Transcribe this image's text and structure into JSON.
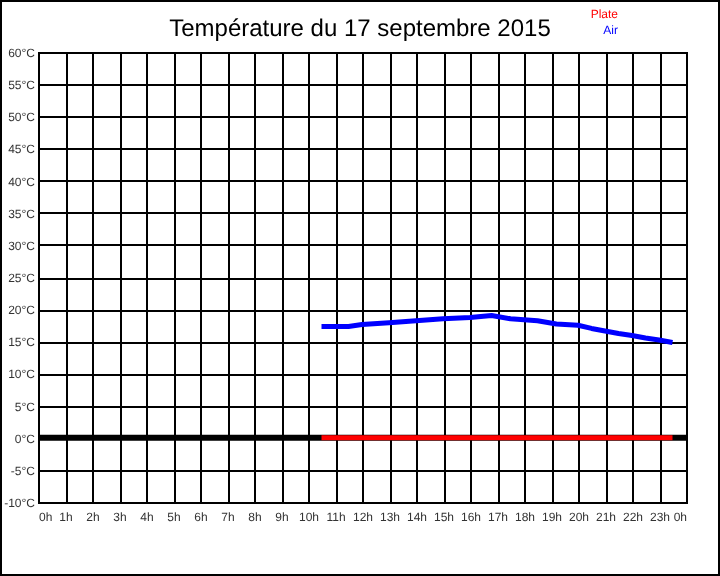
{
  "chart_data": {
    "type": "line",
    "title": "Température du 17 septembre 2015",
    "xlim": [
      "2015-09-17T00:00",
      "2015-09-18T00:00"
    ],
    "ylim": [
      -10,
      60
    ],
    "xticks": [
      {
        "value": "2015-09-17T00:00",
        "label": "0h"
      },
      {
        "value": "2015-09-17T01:00",
        "label": "1h"
      },
      {
        "value": "2015-09-17T02:00",
        "label": "2h"
      },
      {
        "value": "2015-09-17T03:00",
        "label": "3h"
      },
      {
        "value": "2015-09-17T04:00",
        "label": "4h"
      },
      {
        "value": "2015-09-17T05:00",
        "label": "5h"
      },
      {
        "value": "2015-09-17T06:00",
        "label": "6h"
      },
      {
        "value": "2015-09-17T07:00",
        "label": "7h"
      },
      {
        "value": "2015-09-17T08:00",
        "label": "8h"
      },
      {
        "value": "2015-09-17T09:00",
        "label": "9h"
      },
      {
        "value": "2015-09-17T10:00",
        "label": "10h"
      },
      {
        "value": "2015-09-17T11:00",
        "label": "11h"
      },
      {
        "value": "2015-09-17T12:00",
        "label": "12h"
      },
      {
        "value": "2015-09-17T13:00",
        "label": "13h"
      },
      {
        "value": "2015-09-17T14:00",
        "label": "14h"
      },
      {
        "value": "2015-09-17T15:00",
        "label": "15h"
      },
      {
        "value": "2015-09-17T16:00",
        "label": "16h"
      },
      {
        "value": "2015-09-17T17:00",
        "label": "17h"
      },
      {
        "value": "2015-09-17T18:00",
        "label": "18h"
      },
      {
        "value": "2015-09-17T19:00",
        "label": "19h"
      },
      {
        "value": "2015-09-17T20:00",
        "label": "20h"
      },
      {
        "value": "2015-09-17T21:00",
        "label": "21h"
      },
      {
        "value": "2015-09-17T22:00",
        "label": "22h"
      },
      {
        "value": "2015-09-17T23:00",
        "label": "23h"
      },
      {
        "value": "2015-09-18T00:00",
        "label": "0h"
      }
    ],
    "yticks": [
      {
        "value": -10,
        "label": "-10°C"
      },
      {
        "value": -5,
        "label": "-5°C"
      },
      {
        "value": 0,
        "label": "0°C"
      },
      {
        "value": 5,
        "label": "5°C"
      },
      {
        "value": 10,
        "label": "10°C"
      },
      {
        "value": 15,
        "label": "15°C"
      },
      {
        "value": 20,
        "label": "20°C"
      },
      {
        "value": 25,
        "label": "25°C"
      },
      {
        "value": 30,
        "label": "30°C"
      },
      {
        "value": 35,
        "label": "35°C"
      },
      {
        "value": 40,
        "label": "40°C"
      },
      {
        "value": 45,
        "label": "45°C"
      },
      {
        "value": 50,
        "label": "50°C"
      },
      {
        "value": 55,
        "label": "55°C"
      },
      {
        "value": 60,
        "label": "60°C"
      }
    ],
    "grid": true,
    "legend": "top right",
    "line_style": "solid",
    "marker": "none",
    "ref_lines": [
      {
        "axis": "y",
        "value": 0,
        "color": "#000000"
      }
    ],
    "series": [
      {
        "name": "Plate",
        "color": "#ff0000",
        "x": [
          "2015-09-17T10:30",
          "2015-09-17T23:30"
        ],
        "values": [
          0,
          0
        ]
      },
      {
        "name": "Air",
        "color": "#0000ff",
        "x": [
          "2015-09-17T10:30",
          "2015-09-17T11:30",
          "2015-09-17T12:00",
          "2015-09-17T13:00",
          "2015-09-17T14:00",
          "2015-09-17T15:00",
          "2015-09-17T16:00",
          "2015-09-17T16:48",
          "2015-09-17T17:30",
          "2015-09-17T18:30",
          "2015-09-17T19:12",
          "2015-09-17T20:00",
          "2015-09-17T20:30",
          "2015-09-17T21:00",
          "2015-09-17T21:30",
          "2015-09-17T22:00",
          "2015-09-17T22:30",
          "2015-09-17T23:00",
          "2015-09-17T23:30"
        ],
        "values": [
          17.3,
          17.3,
          17.6,
          17.9,
          18.2,
          18.5,
          18.7,
          19.0,
          18.5,
          18.2,
          17.7,
          17.5,
          17.0,
          16.6,
          16.2,
          15.9,
          15.5,
          15.2,
          14.8
        ]
      }
    ]
  }
}
